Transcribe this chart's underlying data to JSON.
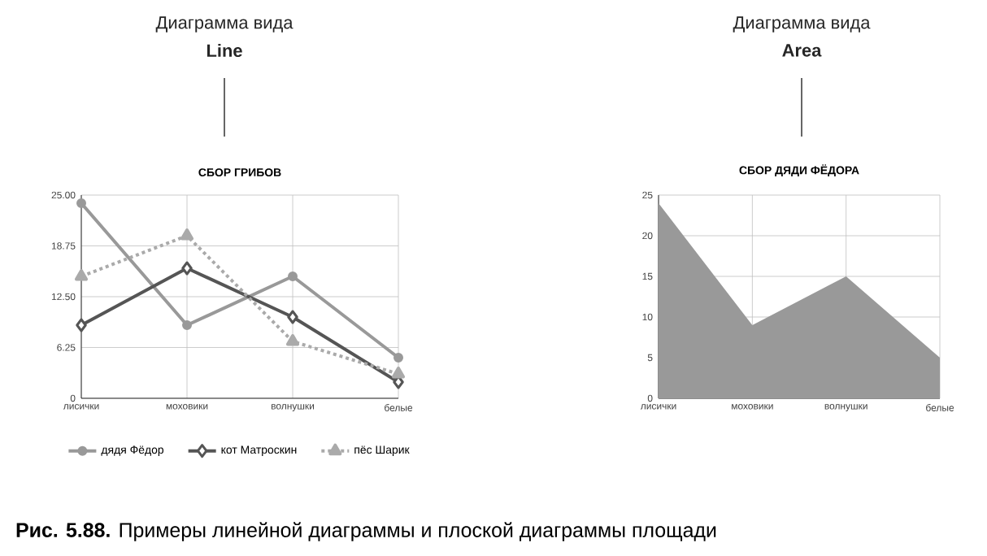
{
  "chart_data": [
    {
      "type": "line",
      "title": "СБОР ГРИБОВ",
      "categories": [
        "лисички",
        "моховики",
        "волнушки",
        "белые"
      ],
      "series": [
        {
          "name": "дядя Фёдор",
          "color": "#999999",
          "marker": "circle",
          "line_style": "solid",
          "values": [
            24,
            9,
            15,
            5
          ]
        },
        {
          "name": "кот Матроскин",
          "color": "#555555",
          "marker": "diamond",
          "line_style": "solid",
          "values": [
            9,
            16,
            10,
            2
          ]
        },
        {
          "name": "пёс Шарик",
          "color": "#aaaaaa",
          "marker": "triangle",
          "line_style": "dotted",
          "values": [
            15,
            20,
            7,
            3
          ]
        }
      ],
      "ylim": [
        0,
        25
      ],
      "yticks": [
        0,
        6.25,
        {
          "value": 12.5,
          "label": "12.50"
        },
        18.75,
        {
          "value": 25,
          "label": "25.00"
        }
      ],
      "grid": true,
      "legend": "bottom",
      "annotations": [
        "Диаграмма вида",
        "Line",
        "**Рис. 5.88.** Примеры линейной диаграммы и плоской диаграммы площади"
      ]
    },
    {
      "type": "area",
      "title": "СБОР ДЯДИ ФЁДОРА",
      "categories": [
        "лисички",
        "моховики",
        "волнушки",
        "белые"
      ],
      "series": [
        {
          "color": "#999999",
          "values": [
            24,
            9,
            15,
            5
          ]
        }
      ],
      "ylim": [
        0,
        25
      ],
      "yticks": [
        0,
        5,
        10,
        15,
        20,
        25
      ],
      "grid": true,
      "annotations": [
        "Диаграмма вида",
        "Area"
      ]
    }
  ]
}
